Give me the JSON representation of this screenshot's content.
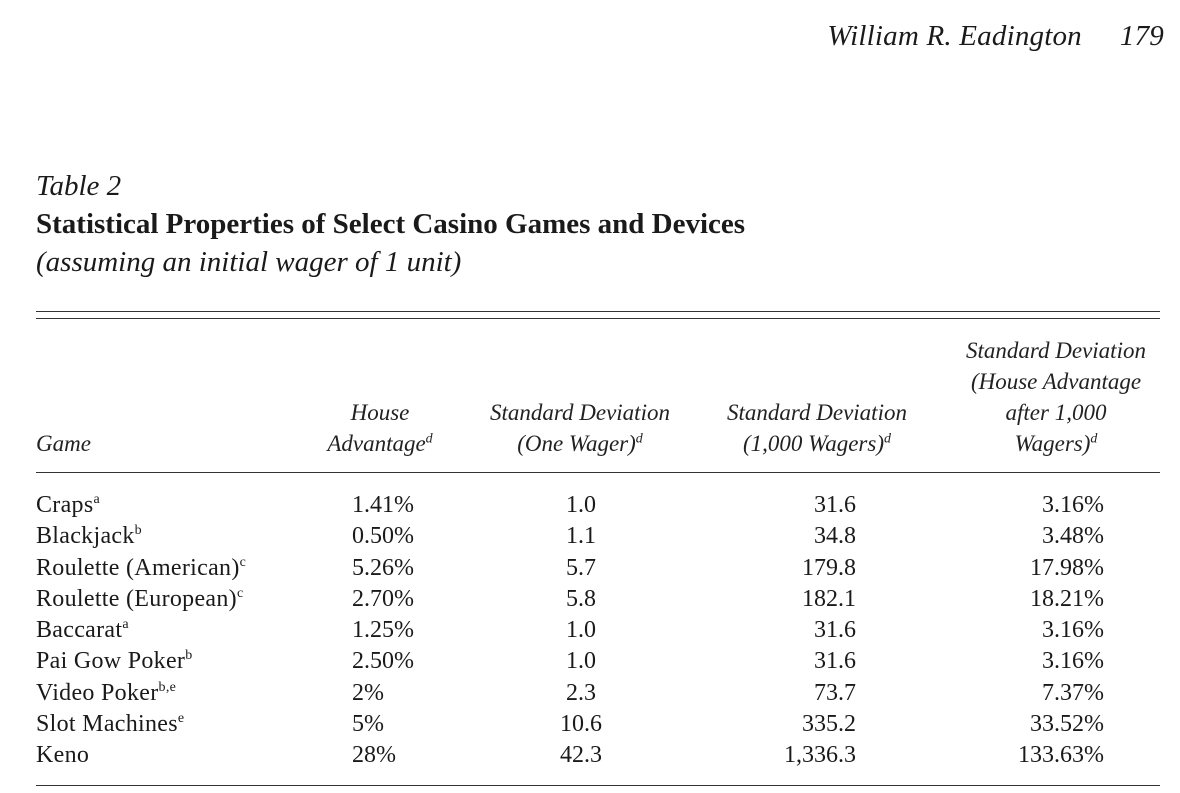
{
  "running_head": {
    "author": "William R. Eadington",
    "page": "179"
  },
  "caption": {
    "table_number": "Table 2",
    "title": "Statistical Properties of Select Casino Games and Devices",
    "subtitle": "(assuming an initial wager of 1 unit)"
  },
  "headers": {
    "game": "Game",
    "house_lines": [
      "House",
      "Advantage"
    ],
    "house_note": "d",
    "sd_one_lines": [
      "Standard Deviation",
      "(One Wager)"
    ],
    "sd_one_note": "d",
    "sd_1000_lines": [
      "Standard Deviation",
      "(1,000 Wagers)"
    ],
    "sd_1000_note": "d",
    "sd_house_lines": [
      "Standard Deviation",
      "(House Advantage",
      "after 1,000",
      "Wagers)"
    ],
    "sd_house_note": "d"
  },
  "rows": [
    {
      "game": "Craps",
      "note": "a",
      "house": "1.41%",
      "sd_one": "1.0",
      "sd_1000": "31.6",
      "sd_house": "3.16%"
    },
    {
      "game": "Blackjack",
      "note": "b",
      "house": "0.50%",
      "sd_one": "1.1",
      "sd_1000": "34.8",
      "sd_house": "3.48%"
    },
    {
      "game": "Roulette (American)",
      "note": "c",
      "house": "5.26%",
      "sd_one": "5.7",
      "sd_1000": "179.8",
      "sd_house": "17.98%"
    },
    {
      "game": "Roulette (European)",
      "note": "c",
      "house": "2.70%",
      "sd_one": "5.8",
      "sd_1000": "182.1",
      "sd_house": "18.21%"
    },
    {
      "game": "Baccarat",
      "note": "a",
      "house": "1.25%",
      "sd_one": "1.0",
      "sd_1000": "31.6",
      "sd_house": "3.16%"
    },
    {
      "game": "Pai Gow Poker",
      "note": "b",
      "house": "2.50%",
      "sd_one": "1.0",
      "sd_1000": "31.6",
      "sd_house": "3.16%"
    },
    {
      "game": "Video Poker",
      "note": "b,e",
      "house": "2%",
      "sd_one": "2.3",
      "sd_1000": "73.7",
      "sd_house": "7.37%"
    },
    {
      "game": "Slot Machines",
      "note": "e",
      "house": "5%",
      "sd_one": "10.6",
      "sd_1000": "335.2",
      "sd_house": "33.52%"
    },
    {
      "game": "Keno",
      "note": "",
      "house": "28%",
      "sd_one": "42.3",
      "sd_1000": "1,336.3",
      "sd_house": "133.63%"
    }
  ]
}
